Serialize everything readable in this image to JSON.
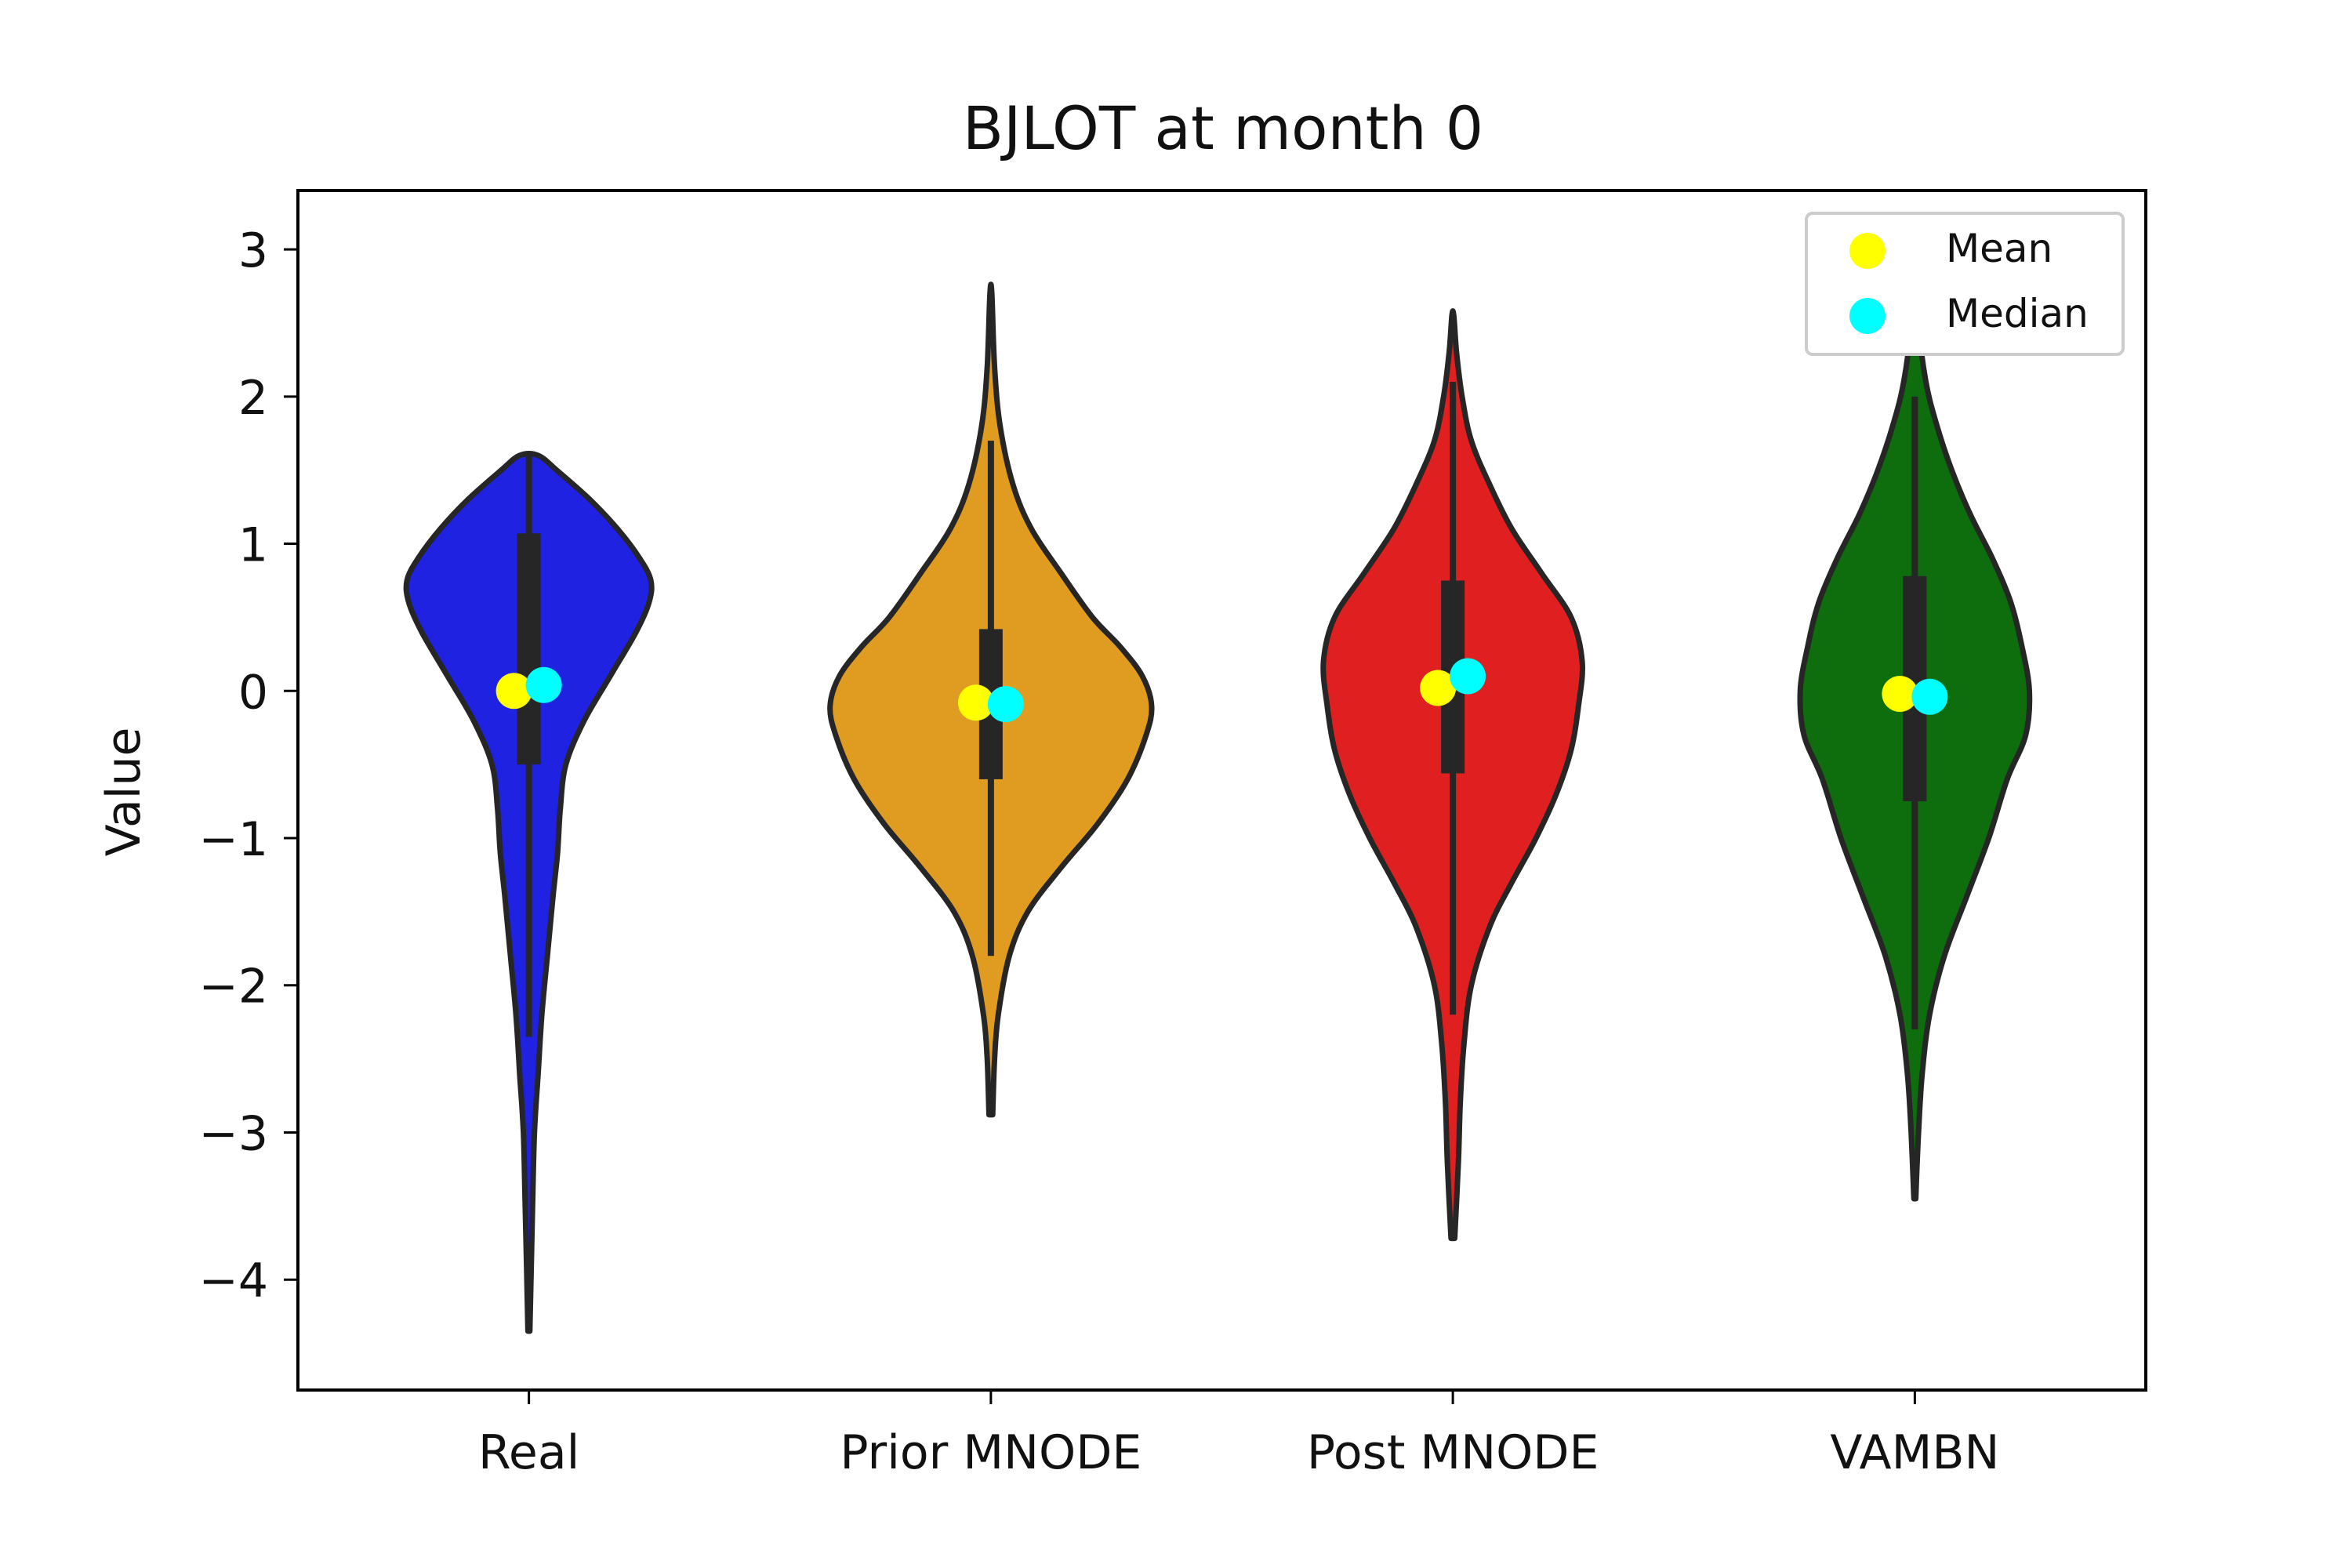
{
  "chart_data": {
    "type": "violin",
    "title": "BJLOT at month 0",
    "xlabel": "",
    "ylabel": "Value",
    "ylim": [
      -4.75,
      3.4
    ],
    "yticks": [
      3,
      2,
      1,
      0,
      -1,
      -2,
      -3,
      -4
    ],
    "ytick_labels": [
      "3",
      "2",
      "1",
      "0",
      "−1",
      "−2",
      "−3",
      "−4"
    ],
    "categories": [
      "Real",
      "Prior MNODE",
      "Post MNODE",
      "VAMBN"
    ],
    "legend": {
      "position": "top-right",
      "entries": [
        {
          "label": "Mean",
          "color": "#ffff00"
        },
        {
          "label": "Median",
          "color": "#00ffff"
        }
      ]
    },
    "grid": false,
    "series": [
      {
        "category": "Real",
        "color": "#1f22e0",
        "min": -4.35,
        "max": 1.6,
        "whisker_low": -2.35,
        "q1": -0.5,
        "q3": 1.07,
        "whisker_high": 1.6,
        "mean": 0.0,
        "median": 0.04,
        "profile": [
          [
            -4.35,
            0.005
          ],
          [
            -3.5,
            0.02
          ],
          [
            -3.0,
            0.03
          ],
          [
            -2.6,
            0.05
          ],
          [
            -2.2,
            0.07
          ],
          [
            -1.8,
            0.1
          ],
          [
            -1.4,
            0.13
          ],
          [
            -1.1,
            0.155
          ],
          [
            -0.8,
            0.17
          ],
          [
            -0.5,
            0.2
          ],
          [
            -0.2,
            0.3
          ],
          [
            0.1,
            0.44
          ],
          [
            0.4,
            0.58
          ],
          [
            0.6,
            0.65
          ],
          [
            0.75,
            0.66
          ],
          [
            0.9,
            0.6
          ],
          [
            1.1,
            0.48
          ],
          [
            1.3,
            0.33
          ],
          [
            1.5,
            0.15
          ],
          [
            1.6,
            0.05
          ]
        ]
      },
      {
        "category": "Prior MNODE",
        "color": "#e09c20",
        "min": -2.88,
        "max": 2.7,
        "whisker_low": -1.8,
        "q1": -0.6,
        "q3": 0.42,
        "whisker_high": 1.7,
        "mean": -0.08,
        "median": -0.09,
        "profile": [
          [
            -2.88,
            0.01
          ],
          [
            -2.5,
            0.02
          ],
          [
            -2.2,
            0.04
          ],
          [
            -1.8,
            0.1
          ],
          [
            -1.5,
            0.2
          ],
          [
            -1.2,
            0.38
          ],
          [
            -0.9,
            0.58
          ],
          [
            -0.6,
            0.74
          ],
          [
            -0.3,
            0.84
          ],
          [
            -0.1,
            0.87
          ],
          [
            0.1,
            0.82
          ],
          [
            0.3,
            0.7
          ],
          [
            0.5,
            0.55
          ],
          [
            0.8,
            0.38
          ],
          [
            1.1,
            0.22
          ],
          [
            1.4,
            0.12
          ],
          [
            1.8,
            0.05
          ],
          [
            2.2,
            0.02
          ],
          [
            2.7,
            0.005
          ]
        ]
      },
      {
        "category": "Post MNODE",
        "color": "#e02020",
        "min": -3.72,
        "max": 2.55,
        "whisker_low": -2.2,
        "q1": -0.56,
        "q3": 0.75,
        "whisker_high": 2.1,
        "mean": 0.02,
        "median": 0.1,
        "profile": [
          [
            -3.72,
            0.01
          ],
          [
            -3.2,
            0.03
          ],
          [
            -2.8,
            0.04
          ],
          [
            -2.4,
            0.06
          ],
          [
            -2.0,
            0.1
          ],
          [
            -1.6,
            0.2
          ],
          [
            -1.3,
            0.32
          ],
          [
            -1.0,
            0.45
          ],
          [
            -0.7,
            0.56
          ],
          [
            -0.4,
            0.64
          ],
          [
            -0.1,
            0.68
          ],
          [
            0.2,
            0.7
          ],
          [
            0.5,
            0.64
          ],
          [
            0.8,
            0.48
          ],
          [
            1.1,
            0.32
          ],
          [
            1.4,
            0.2
          ],
          [
            1.7,
            0.1
          ],
          [
            2.0,
            0.05
          ],
          [
            2.3,
            0.02
          ],
          [
            2.55,
            0.005
          ]
        ]
      },
      {
        "category": "VAMBN",
        "color": "#0e6e0e",
        "min": -3.45,
        "max": 3.03,
        "whisker_low": -2.3,
        "q1": -0.75,
        "q3": 0.78,
        "whisker_high": 2.0,
        "mean": -0.02,
        "median": -0.04,
        "profile": [
          [
            -3.45,
            0.005
          ],
          [
            -3.0,
            0.02
          ],
          [
            -2.6,
            0.04
          ],
          [
            -2.2,
            0.08
          ],
          [
            -1.8,
            0.16
          ],
          [
            -1.4,
            0.28
          ],
          [
            -1.0,
            0.4
          ],
          [
            -0.6,
            0.5
          ],
          [
            -0.3,
            0.6
          ],
          [
            0.0,
            0.62
          ],
          [
            0.3,
            0.58
          ],
          [
            0.6,
            0.52
          ],
          [
            0.9,
            0.42
          ],
          [
            1.2,
            0.3
          ],
          [
            1.5,
            0.2
          ],
          [
            1.8,
            0.12
          ],
          [
            2.1,
            0.06
          ],
          [
            2.5,
            0.02
          ],
          [
            3.03,
            0.005
          ]
        ]
      }
    ]
  }
}
